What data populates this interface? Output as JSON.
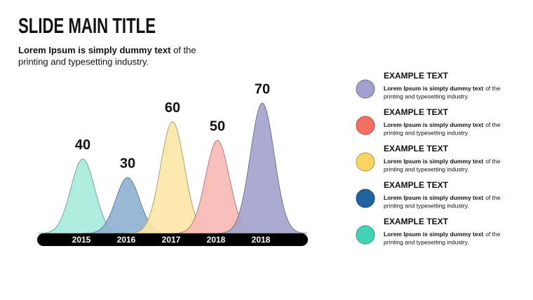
{
  "header": {
    "title": "SLIDE MAIN TITLE",
    "subtitle": [
      "Lorem Ipsum is simply dummy text",
      "of the",
      "printing and typesetting industry."
    ]
  },
  "chart_data": {
    "type": "bell",
    "categories": [
      "2015",
      "2016",
      "2017",
      "2018",
      "2018"
    ],
    "values": [
      40,
      30,
      60,
      50,
      70
    ],
    "colors": [
      "#a6eadc",
      "#8fb2d2",
      "#fbe6a6",
      "#f7b9b3",
      "#a4a4cd"
    ]
  },
  "legend": [
    {
      "title": "EXAMPLE TEXT",
      "text": [
        "Lorem Ipsum is simply dummy text",
        "of the",
        "printing and typesetting industry."
      ],
      "color": "#a0a0cc"
    },
    {
      "title": "EXAMPLE TEXT",
      "text": [
        "Lorem Ipsum is simply dummy text",
        "of the",
        "printing and typesetting industry."
      ],
      "color": "#f36f62"
    },
    {
      "title": "EXAMPLE TEXT",
      "text": [
        "Lorem Ipsum is simply dummy text",
        "of the",
        "printing and typesetting industry."
      ],
      "color": "#f8d462"
    },
    {
      "title": "EXAMPLE TEXT",
      "text": [
        "Lorem Ipsum is simply dummy text",
        "of the",
        "printing and typesetting industry."
      ],
      "color": "#1f64a0"
    },
    {
      "title": "EXAMPLE TEXT",
      "text": [
        "Lorem Ipsum is simply dummy text",
        "of the",
        "printing and typesetting industry."
      ],
      "color": "#42d3b6"
    }
  ]
}
